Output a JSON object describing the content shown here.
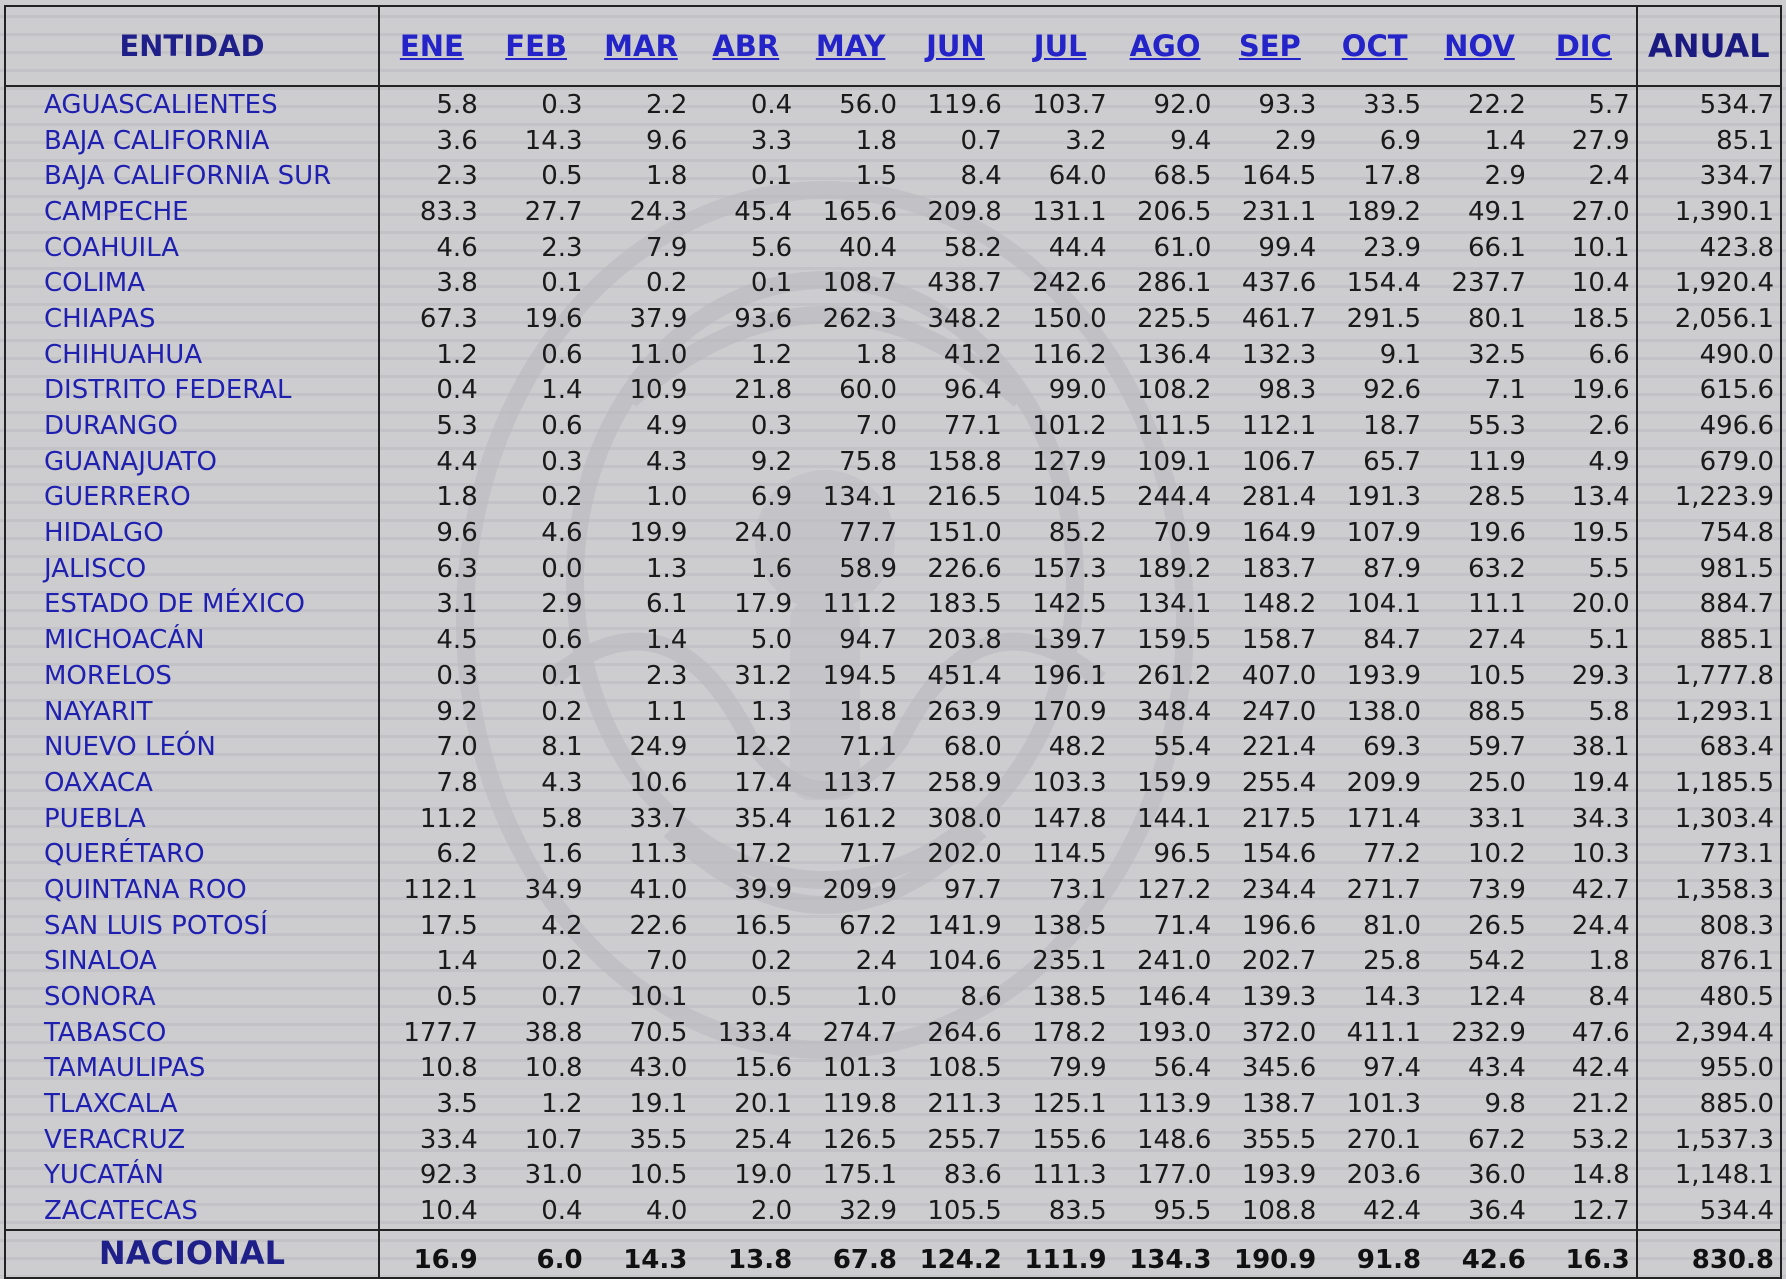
{
  "header": {
    "entity": "ENTIDAD",
    "months": [
      "ENE",
      "FEB",
      "MAR",
      "ABR",
      "MAY",
      "JUN",
      "JUL",
      "AGO",
      "SEP",
      "OCT",
      "NOV",
      "DIC"
    ],
    "annual": "ANUAL"
  },
  "rows": [
    {
      "name": "AGUASCALIENTES",
      "values": [
        "5.8",
        "0.3",
        "2.2",
        "0.4",
        "56.0",
        "119.6",
        "103.7",
        "92.0",
        "93.3",
        "33.5",
        "22.2",
        "5.7"
      ],
      "annual": "534.7"
    },
    {
      "name": "BAJA CALIFORNIA",
      "values": [
        "3.6",
        "14.3",
        "9.6",
        "3.3",
        "1.8",
        "0.7",
        "3.2",
        "9.4",
        "2.9",
        "6.9",
        "1.4",
        "27.9"
      ],
      "annual": "85.1"
    },
    {
      "name": "BAJA CALIFORNIA SUR",
      "values": [
        "2.3",
        "0.5",
        "1.8",
        "0.1",
        "1.5",
        "8.4",
        "64.0",
        "68.5",
        "164.5",
        "17.8",
        "2.9",
        "2.4"
      ],
      "annual": "334.7"
    },
    {
      "name": "CAMPECHE",
      "values": [
        "83.3",
        "27.7",
        "24.3",
        "45.4",
        "165.6",
        "209.8",
        "131.1",
        "206.5",
        "231.1",
        "189.2",
        "49.1",
        "27.0"
      ],
      "annual": "1,390.1"
    },
    {
      "name": "COAHUILA",
      "values": [
        "4.6",
        "2.3",
        "7.9",
        "5.6",
        "40.4",
        "58.2",
        "44.4",
        "61.0",
        "99.4",
        "23.9",
        "66.1",
        "10.1"
      ],
      "annual": "423.8"
    },
    {
      "name": "COLIMA",
      "values": [
        "3.8",
        "0.1",
        "0.2",
        "0.1",
        "108.7",
        "438.7",
        "242.6",
        "286.1",
        "437.6",
        "154.4",
        "237.7",
        "10.4"
      ],
      "annual": "1,920.4"
    },
    {
      "name": "CHIAPAS",
      "values": [
        "67.3",
        "19.6",
        "37.9",
        "93.6",
        "262.3",
        "348.2",
        "150.0",
        "225.5",
        "461.7",
        "291.5",
        "80.1",
        "18.5"
      ],
      "annual": "2,056.1"
    },
    {
      "name": "CHIHUAHUA",
      "values": [
        "1.2",
        "0.6",
        "11.0",
        "1.2",
        "1.8",
        "41.2",
        "116.2",
        "136.4",
        "132.3",
        "9.1",
        "32.5",
        "6.6"
      ],
      "annual": "490.0"
    },
    {
      "name": "DISTRITO FEDERAL",
      "values": [
        "0.4",
        "1.4",
        "10.9",
        "21.8",
        "60.0",
        "96.4",
        "99.0",
        "108.2",
        "98.3",
        "92.6",
        "7.1",
        "19.6"
      ],
      "annual": "615.6"
    },
    {
      "name": "DURANGO",
      "values": [
        "5.3",
        "0.6",
        "4.9",
        "0.3",
        "7.0",
        "77.1",
        "101.2",
        "111.5",
        "112.1",
        "18.7",
        "55.3",
        "2.6"
      ],
      "annual": "496.6"
    },
    {
      "name": "GUANAJUATO",
      "values": [
        "4.4",
        "0.3",
        "4.3",
        "9.2",
        "75.8",
        "158.8",
        "127.9",
        "109.1",
        "106.7",
        "65.7",
        "11.9",
        "4.9"
      ],
      "annual": "679.0"
    },
    {
      "name": "GUERRERO",
      "values": [
        "1.8",
        "0.2",
        "1.0",
        "6.9",
        "134.1",
        "216.5",
        "104.5",
        "244.4",
        "281.4",
        "191.3",
        "28.5",
        "13.4"
      ],
      "annual": "1,223.9"
    },
    {
      "name": "HIDALGO",
      "values": [
        "9.6",
        "4.6",
        "19.9",
        "24.0",
        "77.7",
        "151.0",
        "85.2",
        "70.9",
        "164.9",
        "107.9",
        "19.6",
        "19.5"
      ],
      "annual": "754.8"
    },
    {
      "name": "JALISCO",
      "values": [
        "6.3",
        "0.0",
        "1.3",
        "1.6",
        "58.9",
        "226.6",
        "157.3",
        "189.2",
        "183.7",
        "87.9",
        "63.2",
        "5.5"
      ],
      "annual": "981.5"
    },
    {
      "name": "ESTADO DE MÉXICO",
      "values": [
        "3.1",
        "2.9",
        "6.1",
        "17.9",
        "111.2",
        "183.5",
        "142.5",
        "134.1",
        "148.2",
        "104.1",
        "11.1",
        "20.0"
      ],
      "annual": "884.7"
    },
    {
      "name": "MICHOACÁN",
      "values": [
        "4.5",
        "0.6",
        "1.4",
        "5.0",
        "94.7",
        "203.8",
        "139.7",
        "159.5",
        "158.7",
        "84.7",
        "27.4",
        "5.1"
      ],
      "annual": "885.1"
    },
    {
      "name": "MORELOS",
      "values": [
        "0.3",
        "0.1",
        "2.3",
        "31.2",
        "194.5",
        "451.4",
        "196.1",
        "261.2",
        "407.0",
        "193.9",
        "10.5",
        "29.3"
      ],
      "annual": "1,777.8"
    },
    {
      "name": "NAYARIT",
      "values": [
        "9.2",
        "0.2",
        "1.1",
        "1.3",
        "18.8",
        "263.9",
        "170.9",
        "348.4",
        "247.0",
        "138.0",
        "88.5",
        "5.8"
      ],
      "annual": "1,293.1"
    },
    {
      "name": "NUEVO LEÓN",
      "values": [
        "7.0",
        "8.1",
        "24.9",
        "12.2",
        "71.1",
        "68.0",
        "48.2",
        "55.4",
        "221.4",
        "69.3",
        "59.7",
        "38.1"
      ],
      "annual": "683.4"
    },
    {
      "name": "OAXACA",
      "values": [
        "7.8",
        "4.3",
        "10.6",
        "17.4",
        "113.7",
        "258.9",
        "103.3",
        "159.9",
        "255.4",
        "209.9",
        "25.0",
        "19.4"
      ],
      "annual": "1,185.5"
    },
    {
      "name": "PUEBLA",
      "values": [
        "11.2",
        "5.8",
        "33.7",
        "35.4",
        "161.2",
        "308.0",
        "147.8",
        "144.1",
        "217.5",
        "171.4",
        "33.1",
        "34.3"
      ],
      "annual": "1,303.4"
    },
    {
      "name": "QUERÉTARO",
      "values": [
        "6.2",
        "1.6",
        "11.3",
        "17.2",
        "71.7",
        "202.0",
        "114.5",
        "96.5",
        "154.6",
        "77.2",
        "10.2",
        "10.3"
      ],
      "annual": "773.1"
    },
    {
      "name": "QUINTANA ROO",
      "values": [
        "112.1",
        "34.9",
        "41.0",
        "39.9",
        "209.9",
        "97.7",
        "73.1",
        "127.2",
        "234.4",
        "271.7",
        "73.9",
        "42.7"
      ],
      "annual": "1,358.3"
    },
    {
      "name": "SAN LUIS POTOSÍ",
      "values": [
        "17.5",
        "4.2",
        "22.6",
        "16.5",
        "67.2",
        "141.9",
        "138.5",
        "71.4",
        "196.6",
        "81.0",
        "26.5",
        "24.4"
      ],
      "annual": "808.3"
    },
    {
      "name": "SINALOA",
      "values": [
        "1.4",
        "0.2",
        "7.0",
        "0.2",
        "2.4",
        "104.6",
        "235.1",
        "241.0",
        "202.7",
        "25.8",
        "54.2",
        "1.8"
      ],
      "annual": "876.1"
    },
    {
      "name": "SONORA",
      "values": [
        "0.5",
        "0.7",
        "10.1",
        "0.5",
        "1.0",
        "8.6",
        "138.5",
        "146.4",
        "139.3",
        "14.3",
        "12.4",
        "8.4"
      ],
      "annual": "480.5"
    },
    {
      "name": "TABASCO",
      "values": [
        "177.7",
        "38.8",
        "70.5",
        "133.4",
        "274.7",
        "264.6",
        "178.2",
        "193.0",
        "372.0",
        "411.1",
        "232.9",
        "47.6"
      ],
      "annual": "2,394.4"
    },
    {
      "name": "TAMAULIPAS",
      "values": [
        "10.8",
        "10.8",
        "43.0",
        "15.6",
        "101.3",
        "108.5",
        "79.9",
        "56.4",
        "345.6",
        "97.4",
        "43.4",
        "42.4"
      ],
      "annual": "955.0"
    },
    {
      "name": "TLAXCALA",
      "values": [
        "3.5",
        "1.2",
        "19.1",
        "20.1",
        "119.8",
        "211.3",
        "125.1",
        "113.9",
        "138.7",
        "101.3",
        "9.8",
        "21.2"
      ],
      "annual": "885.0"
    },
    {
      "name": "VERACRUZ",
      "values": [
        "33.4",
        "10.7",
        "35.5",
        "25.4",
        "126.5",
        "255.7",
        "155.6",
        "148.6",
        "355.5",
        "270.1",
        "67.2",
        "53.2"
      ],
      "annual": "1,537.3"
    },
    {
      "name": "YUCATÁN",
      "values": [
        "92.3",
        "31.0",
        "10.5",
        "19.0",
        "175.1",
        "83.6",
        "111.3",
        "177.0",
        "193.9",
        "203.6",
        "36.0",
        "14.8"
      ],
      "annual": "1,148.1"
    },
    {
      "name": "ZACATECAS",
      "values": [
        "10.4",
        "0.4",
        "4.0",
        "2.0",
        "32.9",
        "105.5",
        "83.5",
        "95.5",
        "108.8",
        "42.4",
        "36.4",
        "12.7"
      ],
      "annual": "534.4"
    }
  ],
  "total": {
    "name": "NACIONAL",
    "values": [
      "16.9",
      "6.0",
      "14.3",
      "13.8",
      "67.8",
      "124.2",
      "111.9",
      "134.3",
      "190.9",
      "91.8",
      "42.6",
      "16.3"
    ],
    "annual": "830.8"
  },
  "colors": {
    "header_text": "#1f1f8a",
    "month_link": "#2424c8",
    "entity_text": "#2020b0",
    "background": "#c9c9cc"
  }
}
